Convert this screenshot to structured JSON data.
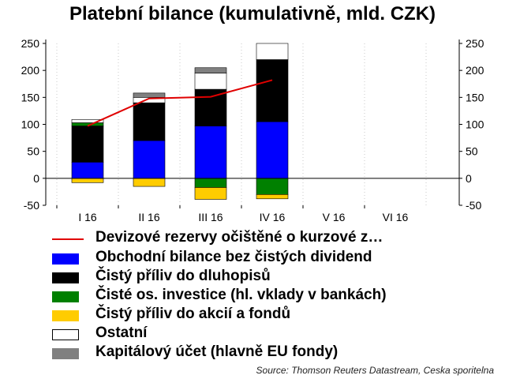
{
  "title": "Platební bilance (kumulativně, mld. CZK)",
  "source": "Source: Thomson Reuters Datastream, Ceska sporitelna",
  "chart_data": {
    "type": "bar",
    "stacked": true,
    "title": "Platební bilance (kumulativně, mld. CZK)",
    "xlabel": "",
    "ylabel": "",
    "ylim": [
      -50,
      250
    ],
    "yticks": [
      -50,
      0,
      50,
      100,
      150,
      200,
      250
    ],
    "y_axis_sides": [
      "left",
      "right"
    ],
    "grid": "vertical dotted",
    "legend_position": "bottom",
    "categories": [
      "I 16",
      "II 16",
      "III 16",
      "IV 16",
      "V 16",
      "VI 16"
    ],
    "series": [
      {
        "name": "Obchodní bilance bez čistých dividend",
        "type": "bar",
        "color": "#0000ff",
        "values": [
          30,
          70,
          97,
          105,
          null,
          null
        ]
      },
      {
        "name": "Čistý příliv do dluhopisů",
        "type": "bar",
        "color": "#000000",
        "values": [
          67,
          70,
          68,
          115,
          null,
          null
        ]
      },
      {
        "name": "Čisté os. investice (hl. vklady v bankách)",
        "type": "bar",
        "color": "#008000",
        "values": [
          6,
          0,
          -17,
          -30,
          null,
          null
        ]
      },
      {
        "name": "Čistý příliv do akcií a fondů",
        "type": "bar",
        "color": "#ffcc00",
        "values": [
          -8,
          -15,
          -22,
          -8,
          null,
          null
        ]
      },
      {
        "name": "Ostatní",
        "type": "bar",
        "color": "#ffffff",
        "values": [
          6,
          10,
          30,
          30,
          null,
          null
        ]
      },
      {
        "name": "Kapitálový účet (hlavně EU fondy)",
        "type": "bar",
        "color": "#808080",
        "values": [
          0,
          8,
          10,
          0,
          null,
          null
        ]
      },
      {
        "name": "Devizové rezervy očištěné o kurzové z…",
        "type": "line",
        "color": "#ff0000",
        "values": [
          97,
          148,
          151,
          182,
          null,
          null
        ]
      }
    ]
  }
}
